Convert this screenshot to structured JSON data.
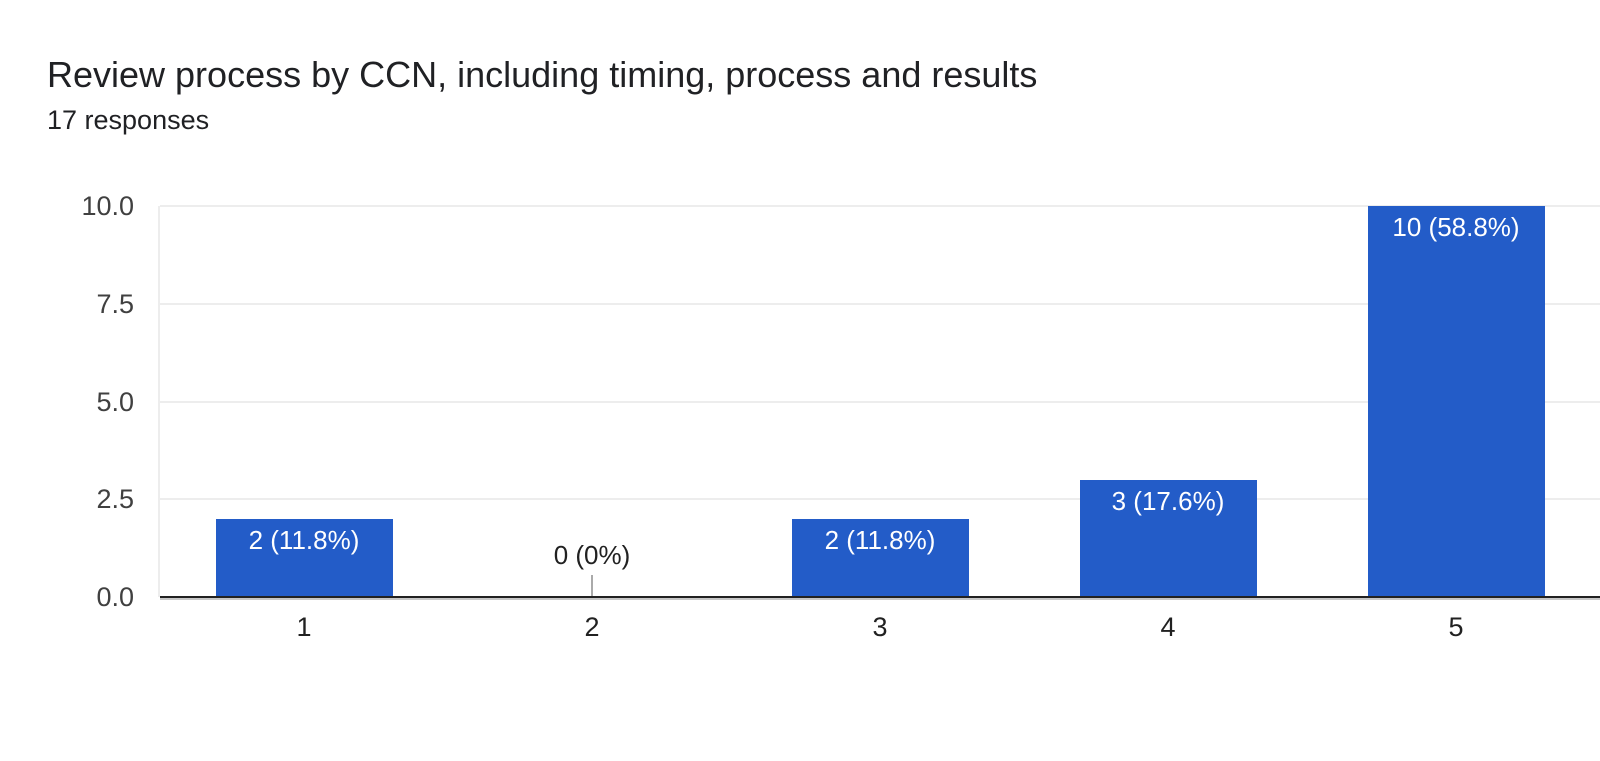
{
  "header": {
    "title": "Review process by CCN, including timing, process and results",
    "subtitle": "17 responses"
  },
  "colors": {
    "bar": "#235cc8",
    "bar_label": "#ffffff",
    "title_text": "#202124",
    "y_tick_text": "#404040",
    "x_tick_text": "#212121",
    "gridline": "#ededed",
    "axis_line": "#212121",
    "zero_stem": "#aaaaaa",
    "background": "#ffffff"
  },
  "chart_data": {
    "type": "bar",
    "title": "Review process by CCN, including timing, process and results",
    "subtitle": "17 responses",
    "total_responses": 17,
    "categories": [
      "1",
      "2",
      "3",
      "4",
      "5"
    ],
    "values": [
      2,
      0,
      2,
      3,
      10
    ],
    "percentages": [
      11.8,
      0,
      11.8,
      17.6,
      58.8
    ],
    "bar_labels": [
      "2 (11.8%)",
      "0 (0%)",
      "2 (11.8%)",
      "3 (17.6%)",
      "10 (58.8%)"
    ],
    "xlabel": "",
    "ylabel": "",
    "ylim": [
      0,
      10
    ],
    "yticks": [
      0,
      2.5,
      5,
      7.5,
      10
    ],
    "ytick_labels": [
      "0.0",
      "2.5",
      "5.0",
      "7.5",
      "10.0"
    ],
    "grid": true,
    "legend": "none"
  }
}
